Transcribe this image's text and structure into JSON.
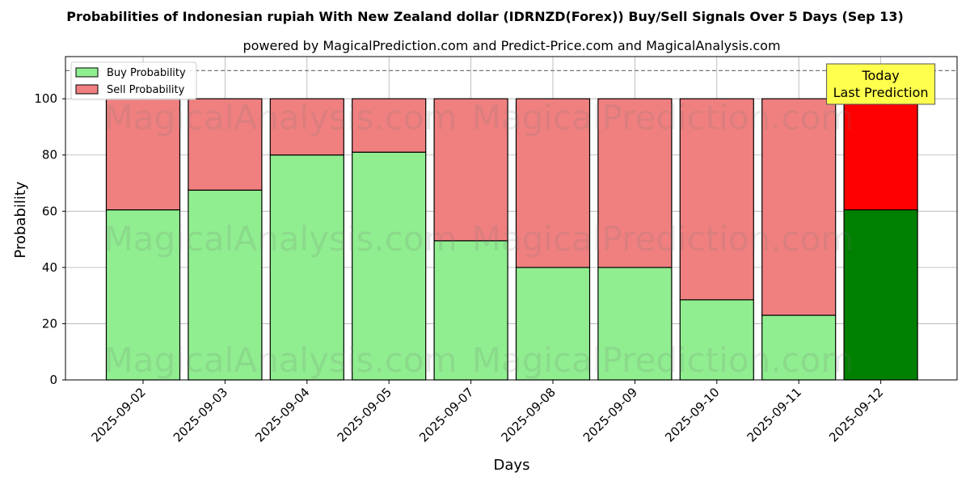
{
  "chart_data": {
    "type": "bar",
    "stacked": true,
    "title": "Probabilities of Indonesian rupiah With New Zealand dollar (IDRNZD(Forex)) Buy/Sell Signals Over 5 Days (Sep 13)",
    "subtitle": "powered by MagicalPrediction.com and Predict-Price.com and MagicalAnalysis.com",
    "xlabel": "Days",
    "ylabel": "Probability",
    "ylim": [
      0,
      115
    ],
    "yticks": [
      0,
      20,
      40,
      60,
      80,
      100
    ],
    "grid": true,
    "legend_position": "top-left",
    "reference_line": 110,
    "categories": [
      "2025-09-02",
      "2025-09-03",
      "2025-09-04",
      "2025-09-05",
      "2025-09-07",
      "2025-09-08",
      "2025-09-09",
      "2025-09-10",
      "2025-09-11",
      "2025-09-12"
    ],
    "series": [
      {
        "name": "Buy Probability",
        "color": "#90ee90",
        "values": [
          60.5,
          67.5,
          80,
          81,
          49.5,
          40,
          40,
          28.5,
          23,
          60.5
        ]
      },
      {
        "name": "Sell Probability",
        "color": "#f08080",
        "values": [
          39.5,
          32.5,
          20,
          19,
          50.5,
          60,
          60,
          71.5,
          77,
          39.5
        ]
      }
    ],
    "highlight": {
      "index": 9,
      "buy_color": "#008000",
      "sell_color": "#ff0000"
    },
    "annotation": {
      "lines": [
        "Today",
        "Last Prediction"
      ],
      "box_color": "#ffff4d"
    },
    "watermarks": [
      "MagicalAnalysis.com",
      "MagicalPrediction.com"
    ]
  }
}
